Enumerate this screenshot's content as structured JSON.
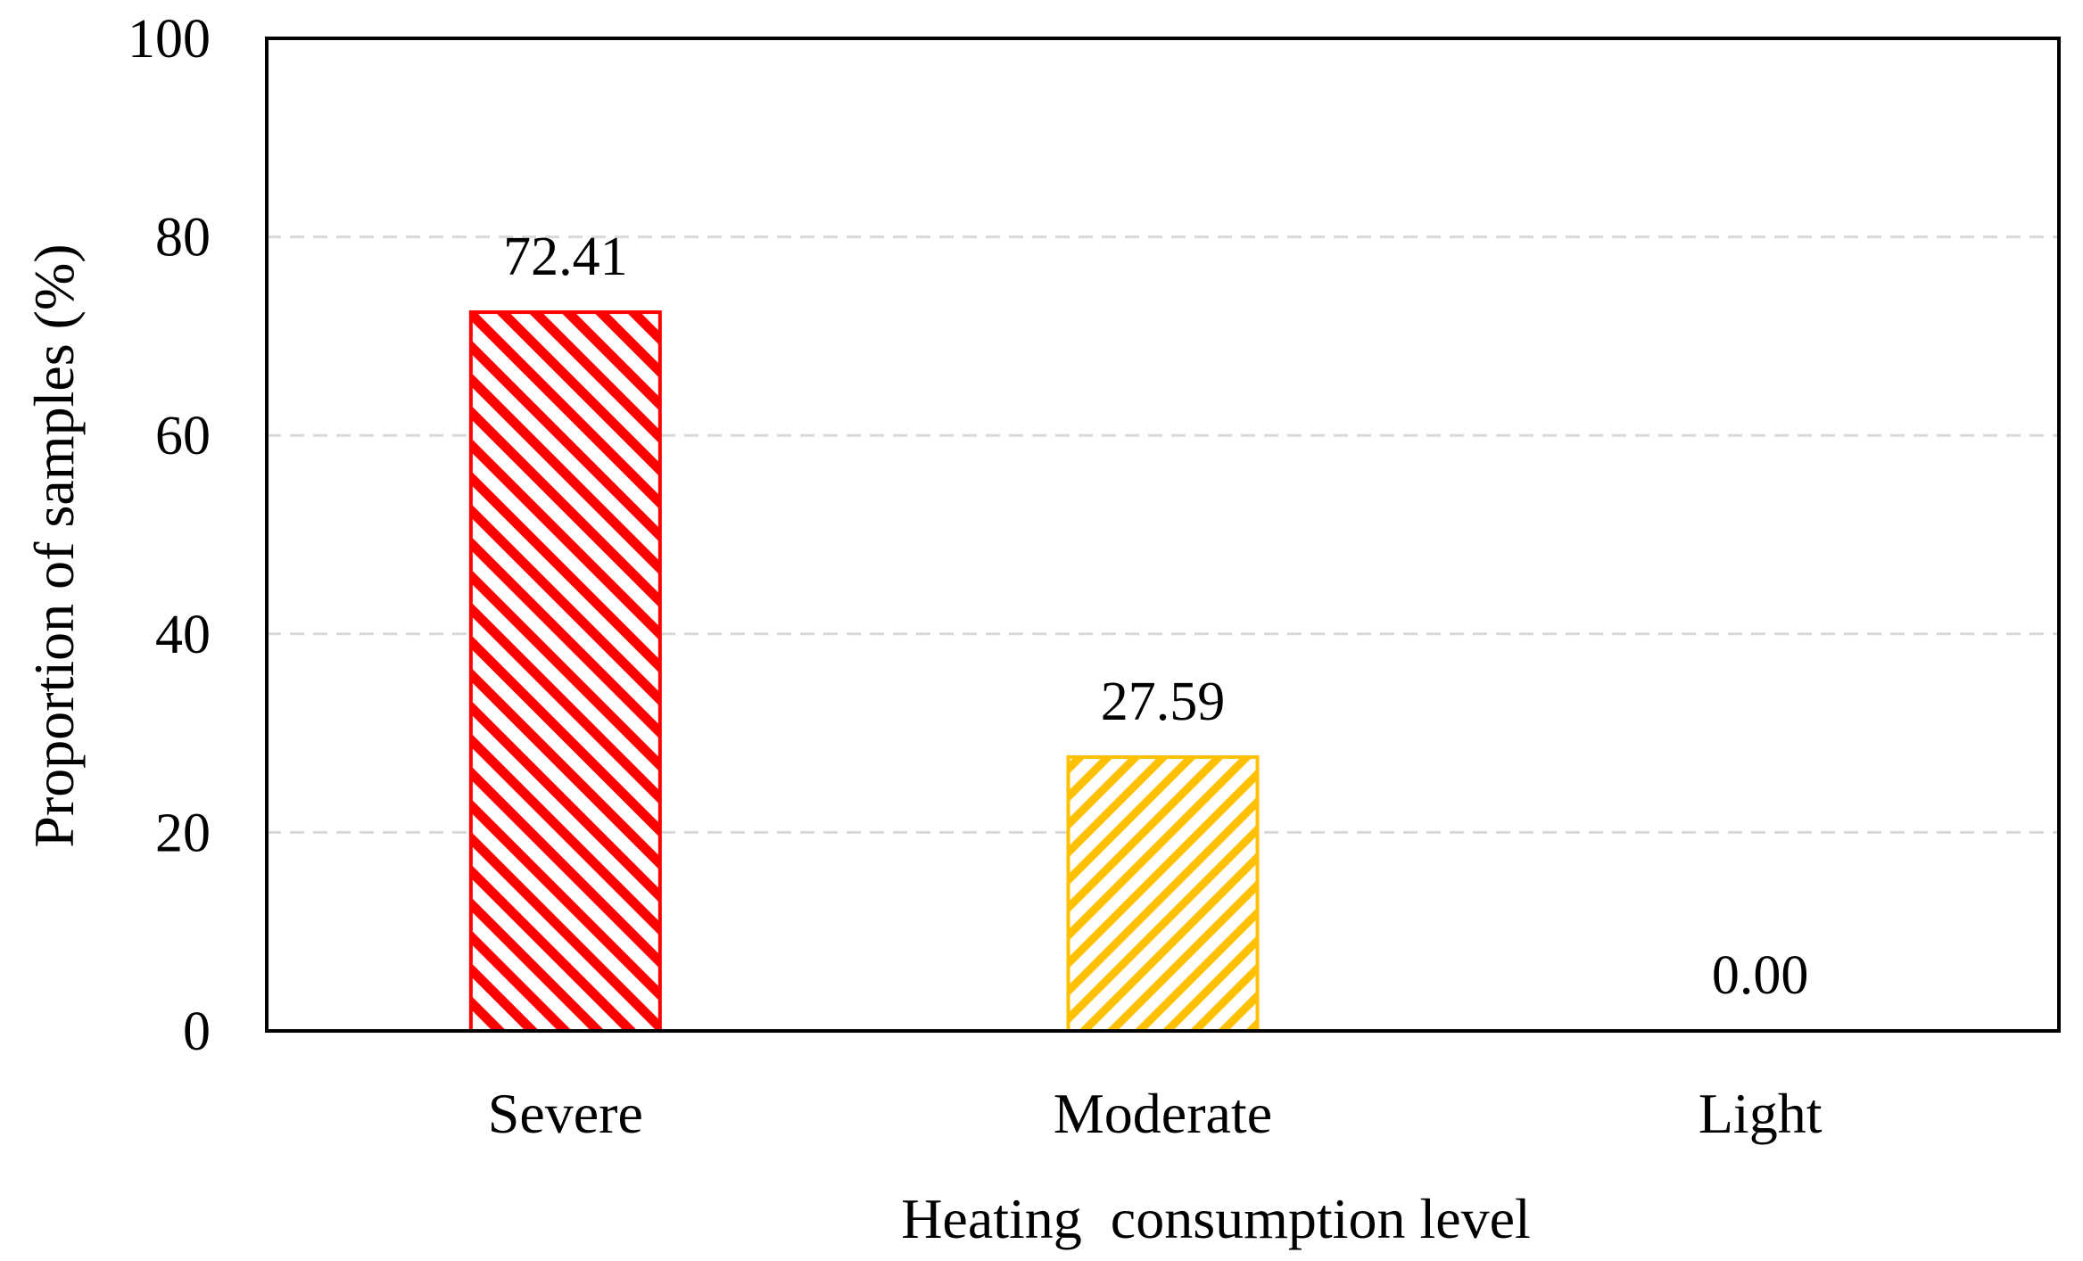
{
  "chart_data": {
    "type": "bar",
    "title": "",
    "xlabel": "Heating  consumption level",
    "ylabel": "Proportion of samples (%)",
    "categories": [
      "Severe",
      "Moderate",
      "Light"
    ],
    "values": [
      72.41,
      27.59,
      0.0
    ],
    "value_labels": [
      "72.41",
      "27.59",
      "0.00"
    ],
    "ylim": [
      0,
      100
    ],
    "yticks": [
      0,
      20,
      40,
      60,
      80,
      100
    ],
    "ytick_labels": [
      "0",
      "20",
      "40",
      "60",
      "80",
      "100"
    ],
    "grid": "horizontal dashed",
    "legend": "none",
    "bar_colors": [
      "#ff0000",
      "#ffc000",
      "#7f7f7f"
    ],
    "bar_pattern": [
      "diagonal-down",
      "diagonal-up",
      "none"
    ]
  }
}
